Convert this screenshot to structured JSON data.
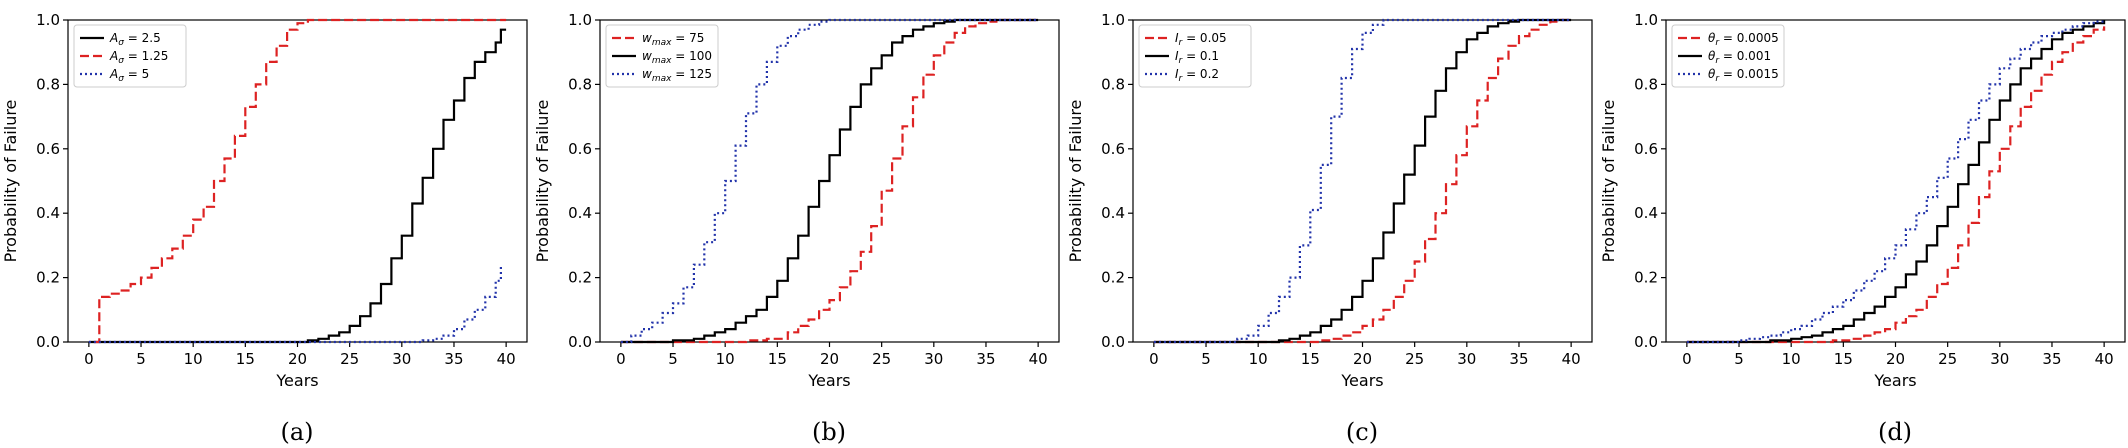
{
  "chart_data": [
    {
      "type": "line",
      "caption": "(a)",
      "xlabel": "Years",
      "ylabel": "Probability of Failure",
      "xlim": [
        -2,
        42
      ],
      "ylim": [
        0,
        1
      ],
      "xticks": [
        0,
        5,
        10,
        15,
        20,
        25,
        30,
        35,
        40
      ],
      "yticks": [
        0.0,
        0.2,
        0.4,
        0.6,
        0.8,
        1.0
      ],
      "legend_position": "top-left",
      "series": [
        {
          "name": "A_σ = 2.5",
          "sym": "A",
          "sub": "σ",
          "eq": " = 2.5",
          "color": "#000000",
          "style": "solid",
          "x": [
            0,
            21,
            22,
            23,
            24,
            25,
            26,
            27,
            28,
            29,
            30,
            31,
            32,
            33,
            34,
            35,
            36,
            37,
            38,
            39,
            39.5,
            40
          ],
          "y": [
            0,
            0.005,
            0.01,
            0.02,
            0.03,
            0.05,
            0.08,
            0.12,
            0.18,
            0.26,
            0.33,
            0.43,
            0.51,
            0.6,
            0.69,
            0.75,
            0.82,
            0.87,
            0.9,
            0.93,
            0.97,
            0.97
          ]
        },
        {
          "name": "A_σ = 1.25",
          "sym": "A",
          "sub": "σ",
          "eq": " = 1.25",
          "color": "#dd2222",
          "style": "dashed",
          "x": [
            0.5,
            1,
            2,
            3,
            4,
            5,
            6,
            7,
            8,
            9,
            10,
            11,
            12,
            13,
            14,
            15,
            16,
            17,
            18,
            19,
            20,
            21,
            22,
            40
          ],
          "y": [
            0,
            0.14,
            0.15,
            0.16,
            0.18,
            0.2,
            0.23,
            0.26,
            0.29,
            0.33,
            0.38,
            0.42,
            0.5,
            0.57,
            0.64,
            0.73,
            0.8,
            0.87,
            0.92,
            0.97,
            0.99,
            1.0,
            1.0,
            1.0
          ]
        },
        {
          "name": "A_σ = 5",
          "sym": "A",
          "sub": "σ",
          "eq": " = 5",
          "color": "#2233aa",
          "style": "dotted",
          "x": [
            0,
            30,
            32,
            33,
            34,
            35,
            36,
            37,
            38,
            39,
            39.5
          ],
          "y": [
            0,
            0.0,
            0.005,
            0.01,
            0.02,
            0.04,
            0.07,
            0.1,
            0.14,
            0.19,
            0.24
          ]
        }
      ]
    },
    {
      "type": "line",
      "caption": "(b)",
      "xlabel": "Years",
      "ylabel": "Probability of Failure",
      "xlim": [
        -2,
        42
      ],
      "ylim": [
        0,
        1
      ],
      "xticks": [
        0,
        5,
        10,
        15,
        20,
        25,
        30,
        35,
        40
      ],
      "yticks": [
        0.0,
        0.2,
        0.4,
        0.6,
        0.8,
        1.0
      ],
      "legend_position": "top-left",
      "series": [
        {
          "name": "w_max = 75",
          "sym": "w",
          "sub": "max",
          "eq": " = 75",
          "color": "#dd2222",
          "style": "dashed",
          "x": [
            0,
            10,
            12,
            14,
            16,
            17,
            18,
            19,
            20,
            21,
            22,
            23,
            24,
            25,
            26,
            27,
            28,
            29,
            30,
            31,
            32,
            33,
            34,
            35,
            36,
            37,
            40
          ],
          "y": [
            0,
            0.0,
            0.005,
            0.01,
            0.03,
            0.05,
            0.07,
            0.1,
            0.13,
            0.17,
            0.22,
            0.28,
            0.36,
            0.47,
            0.57,
            0.67,
            0.76,
            0.83,
            0.89,
            0.93,
            0.96,
            0.98,
            0.99,
            0.995,
            1.0,
            1.0,
            1.0
          ]
        },
        {
          "name": "w_max = 100",
          "sym": "w",
          "sub": "max",
          "eq": " = 100",
          "color": "#000000",
          "style": "solid",
          "x": [
            0,
            5,
            7,
            8,
            9,
            10,
            11,
            12,
            13,
            14,
            15,
            16,
            17,
            18,
            19,
            20,
            21,
            22,
            23,
            24,
            25,
            26,
            27,
            28,
            29,
            30,
            31,
            32,
            33,
            34,
            35,
            36,
            40
          ],
          "y": [
            0,
            0.005,
            0.01,
            0.02,
            0.03,
            0.04,
            0.06,
            0.08,
            0.1,
            0.14,
            0.19,
            0.26,
            0.33,
            0.42,
            0.5,
            0.58,
            0.66,
            0.73,
            0.8,
            0.85,
            0.89,
            0.93,
            0.95,
            0.97,
            0.98,
            0.99,
            0.995,
            1.0,
            1.0,
            1.0,
            1.0,
            1.0,
            1.0
          ]
        },
        {
          "name": "w_max = 125",
          "sym": "w",
          "sub": "max",
          "eq": " = 125",
          "color": "#2233aa",
          "style": "dotted",
          "x": [
            0,
            1,
            2,
            3,
            4,
            5,
            6,
            7,
            8,
            9,
            10,
            11,
            12,
            13,
            14,
            15,
            16,
            17,
            18,
            19,
            20,
            21,
            22,
            40
          ],
          "y": [
            0,
            0.02,
            0.04,
            0.06,
            0.09,
            0.12,
            0.17,
            0.24,
            0.31,
            0.4,
            0.5,
            0.61,
            0.71,
            0.8,
            0.87,
            0.92,
            0.95,
            0.97,
            0.985,
            0.995,
            1.0,
            1.0,
            1.0,
            1.0
          ]
        }
      ]
    },
    {
      "type": "line",
      "caption": "(c)",
      "xlabel": "Years",
      "ylabel": "Probability of Failure",
      "xlim": [
        -2,
        42
      ],
      "ylim": [
        0,
        1
      ],
      "xticks": [
        0,
        5,
        10,
        15,
        20,
        25,
        30,
        35,
        40
      ],
      "yticks": [
        0.0,
        0.2,
        0.4,
        0.6,
        0.8,
        1.0
      ],
      "legend_position": "top-left",
      "series": [
        {
          "name": "I_r = 0.05",
          "sym": "I",
          "sub": "r",
          "eq": " = 0.05",
          "color": "#dd2222",
          "style": "dashed",
          "x": [
            0,
            16,
            17,
            18,
            19,
            20,
            21,
            22,
            23,
            24,
            25,
            26,
            27,
            28,
            29,
            30,
            31,
            32,
            33,
            34,
            35,
            36,
            37,
            38,
            39,
            40
          ],
          "y": [
            0,
            0.005,
            0.01,
            0.02,
            0.03,
            0.05,
            0.07,
            0.1,
            0.14,
            0.19,
            0.25,
            0.32,
            0.4,
            0.49,
            0.58,
            0.67,
            0.75,
            0.82,
            0.88,
            0.92,
            0.95,
            0.97,
            0.985,
            0.995,
            1.0,
            1.0
          ]
        },
        {
          "name": "I_r = 0.1",
          "sym": "I",
          "sub": "r",
          "eq": " = 0.1",
          "color": "#000000",
          "style": "solid",
          "x": [
            0,
            12,
            13,
            14,
            15,
            16,
            17,
            18,
            19,
            20,
            21,
            22,
            23,
            24,
            25,
            26,
            27,
            28,
            29,
            30,
            31,
            32,
            33,
            34,
            35,
            36,
            37,
            40
          ],
          "y": [
            0,
            0.005,
            0.01,
            0.02,
            0.03,
            0.05,
            0.07,
            0.1,
            0.14,
            0.19,
            0.26,
            0.34,
            0.43,
            0.52,
            0.61,
            0.7,
            0.78,
            0.85,
            0.9,
            0.94,
            0.96,
            0.98,
            0.99,
            0.995,
            1.0,
            1.0,
            1.0,
            1.0
          ]
        },
        {
          "name": "I_r = 0.2",
          "sym": "I",
          "sub": "r",
          "eq": " = 0.2",
          "color": "#2233aa",
          "style": "dotted",
          "x": [
            0,
            8,
            9,
            10,
            11,
            12,
            13,
            14,
            15,
            16,
            17,
            18,
            19,
            20,
            21,
            22,
            23,
            24,
            40
          ],
          "y": [
            0,
            0.01,
            0.02,
            0.05,
            0.09,
            0.14,
            0.2,
            0.3,
            0.41,
            0.55,
            0.7,
            0.82,
            0.91,
            0.96,
            0.985,
            1.0,
            1.0,
            1.0,
            1.0
          ]
        }
      ]
    },
    {
      "type": "line",
      "caption": "(d)",
      "xlabel": "Years",
      "ylabel": "Probability of Failure",
      "xlim": [
        -2,
        42
      ],
      "ylim": [
        0,
        1
      ],
      "xticks": [
        0,
        5,
        10,
        15,
        20,
        25,
        30,
        35,
        40
      ],
      "yticks": [
        0.0,
        0.2,
        0.4,
        0.6,
        0.8,
        1.0
      ],
      "legend_position": "top-left",
      "series": [
        {
          "name": "θ_r = 0.0005",
          "sym": "θ",
          "sub": "r",
          "eq": " = 0.0005",
          "color": "#dd2222",
          "style": "dashed",
          "x": [
            0,
            12,
            14,
            16,
            17,
            18,
            19,
            20,
            21,
            22,
            23,
            24,
            25,
            26,
            27,
            28,
            29,
            30,
            31,
            32,
            33,
            34,
            35,
            36,
            37,
            38,
            39,
            40
          ],
          "y": [
            0,
            0.0,
            0.005,
            0.01,
            0.02,
            0.03,
            0.04,
            0.06,
            0.08,
            0.1,
            0.14,
            0.18,
            0.23,
            0.3,
            0.37,
            0.45,
            0.53,
            0.6,
            0.67,
            0.73,
            0.78,
            0.83,
            0.87,
            0.9,
            0.93,
            0.95,
            0.97,
            0.98
          ]
        },
        {
          "name": "θ_r = 0.001",
          "sym": "θ",
          "sub": "r",
          "eq": " = 0.001",
          "color": "#000000",
          "style": "solid",
          "x": [
            0,
            8,
            10,
            11,
            12,
            13,
            14,
            15,
            16,
            17,
            18,
            19,
            20,
            21,
            22,
            23,
            24,
            25,
            26,
            27,
            28,
            29,
            30,
            31,
            32,
            33,
            34,
            35,
            36,
            37,
            38,
            39,
            40
          ],
          "y": [
            0,
            0.005,
            0.01,
            0.015,
            0.02,
            0.03,
            0.04,
            0.05,
            0.07,
            0.09,
            0.11,
            0.14,
            0.17,
            0.21,
            0.25,
            0.3,
            0.36,
            0.42,
            0.49,
            0.55,
            0.62,
            0.69,
            0.75,
            0.8,
            0.85,
            0.88,
            0.91,
            0.94,
            0.96,
            0.97,
            0.98,
            0.99,
            1.0
          ]
        },
        {
          "name": "θ_r = 0.0015",
          "sym": "θ",
          "sub": "r",
          "eq": " = 0.0015",
          "color": "#2233aa",
          "style": "dotted",
          "x": [
            0,
            5,
            6,
            7,
            8,
            9,
            10,
            11,
            12,
            13,
            14,
            15,
            16,
            17,
            18,
            19,
            20,
            21,
            22,
            23,
            24,
            25,
            26,
            27,
            28,
            29,
            30,
            31,
            32,
            33,
            34,
            35,
            36,
            37,
            38,
            39,
            40
          ],
          "y": [
            0,
            0.005,
            0.01,
            0.015,
            0.02,
            0.03,
            0.04,
            0.05,
            0.07,
            0.09,
            0.11,
            0.13,
            0.16,
            0.19,
            0.22,
            0.26,
            0.3,
            0.35,
            0.4,
            0.45,
            0.51,
            0.57,
            0.63,
            0.69,
            0.75,
            0.8,
            0.85,
            0.88,
            0.91,
            0.93,
            0.95,
            0.96,
            0.97,
            0.98,
            0.99,
            0.995,
            1.0
          ]
        }
      ]
    }
  ]
}
